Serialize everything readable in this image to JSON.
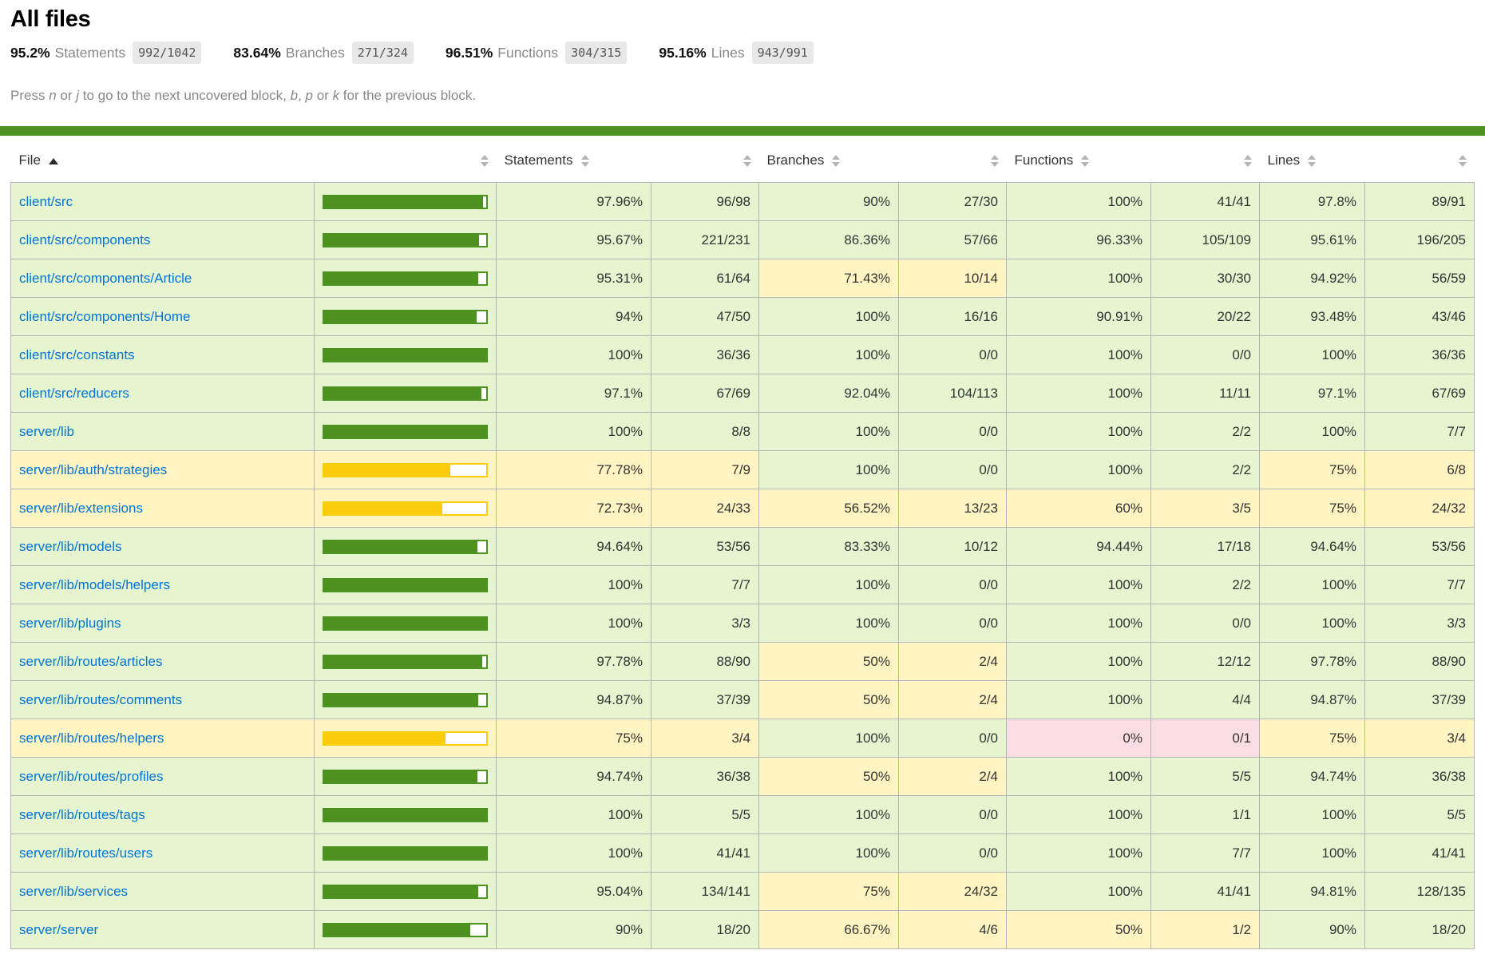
{
  "page": {
    "title": "All files"
  },
  "summary": [
    {
      "pct": "95.2%",
      "label": "Statements",
      "fraction": "992/1042"
    },
    {
      "pct": "83.64%",
      "label": "Branches",
      "fraction": "271/324"
    },
    {
      "pct": "96.51%",
      "label": "Functions",
      "fraction": "304/315"
    },
    {
      "pct": "95.16%",
      "label": "Lines",
      "fraction": "943/991"
    }
  ],
  "hint": {
    "segments": [
      {
        "text": "Press ",
        "em": false
      },
      {
        "text": "n",
        "em": true
      },
      {
        "text": " or ",
        "em": false
      },
      {
        "text": "j",
        "em": true
      },
      {
        "text": " to go to the next uncovered block, ",
        "em": false
      },
      {
        "text": "b",
        "em": true
      },
      {
        "text": ", ",
        "em": false
      },
      {
        "text": "p",
        "em": true
      },
      {
        "text": " or ",
        "em": false
      },
      {
        "text": "k",
        "em": true
      },
      {
        "text": " for the previous block.",
        "em": false
      }
    ]
  },
  "colors": {
    "high-bg": "#e6f5d0",
    "medium-bg": "#fff4c2",
    "low-bg": "#fadde4",
    "bar-high": "#4d9221",
    "bar-medium": "#f9cd0b",
    "status": "#4d9221",
    "link": "#0074d9",
    "border": "#b6b6b6",
    "quiet": "#888888"
  },
  "table": {
    "columns": [
      "File",
      "Statements",
      "Branches",
      "Functions",
      "Lines"
    ],
    "rows": [
      {
        "file": "client/src",
        "level": "high",
        "bar_pct": 97.96,
        "statements": {
          "pct": "97.96%",
          "abs": "96/98",
          "level": "high"
        },
        "branches": {
          "pct": "90%",
          "abs": "27/30",
          "level": "high"
        },
        "functions": {
          "pct": "100%",
          "abs": "41/41",
          "level": "high"
        },
        "lines": {
          "pct": "97.8%",
          "abs": "89/91",
          "level": "high"
        }
      },
      {
        "file": "client/src/components",
        "level": "high",
        "bar_pct": 95.67,
        "statements": {
          "pct": "95.67%",
          "abs": "221/231",
          "level": "high"
        },
        "branches": {
          "pct": "86.36%",
          "abs": "57/66",
          "level": "high"
        },
        "functions": {
          "pct": "96.33%",
          "abs": "105/109",
          "level": "high"
        },
        "lines": {
          "pct": "95.61%",
          "abs": "196/205",
          "level": "high"
        }
      },
      {
        "file": "client/src/components/Article",
        "level": "high",
        "bar_pct": 95.31,
        "statements": {
          "pct": "95.31%",
          "abs": "61/64",
          "level": "high"
        },
        "branches": {
          "pct": "71.43%",
          "abs": "10/14",
          "level": "medium"
        },
        "functions": {
          "pct": "100%",
          "abs": "30/30",
          "level": "high"
        },
        "lines": {
          "pct": "94.92%",
          "abs": "56/59",
          "level": "high"
        }
      },
      {
        "file": "client/src/components/Home",
        "level": "high",
        "bar_pct": 94,
        "statements": {
          "pct": "94%",
          "abs": "47/50",
          "level": "high"
        },
        "branches": {
          "pct": "100%",
          "abs": "16/16",
          "level": "high"
        },
        "functions": {
          "pct": "90.91%",
          "abs": "20/22",
          "level": "high"
        },
        "lines": {
          "pct": "93.48%",
          "abs": "43/46",
          "level": "high"
        }
      },
      {
        "file": "client/src/constants",
        "level": "high",
        "bar_pct": 100,
        "statements": {
          "pct": "100%",
          "abs": "36/36",
          "level": "high"
        },
        "branches": {
          "pct": "100%",
          "abs": "0/0",
          "level": "high"
        },
        "functions": {
          "pct": "100%",
          "abs": "0/0",
          "level": "high"
        },
        "lines": {
          "pct": "100%",
          "abs": "36/36",
          "level": "high"
        }
      },
      {
        "file": "client/src/reducers",
        "level": "high",
        "bar_pct": 97.1,
        "statements": {
          "pct": "97.1%",
          "abs": "67/69",
          "level": "high"
        },
        "branches": {
          "pct": "92.04%",
          "abs": "104/113",
          "level": "high"
        },
        "functions": {
          "pct": "100%",
          "abs": "11/11",
          "level": "high"
        },
        "lines": {
          "pct": "97.1%",
          "abs": "67/69",
          "level": "high"
        }
      },
      {
        "file": "server/lib",
        "level": "high",
        "bar_pct": 100,
        "statements": {
          "pct": "100%",
          "abs": "8/8",
          "level": "high"
        },
        "branches": {
          "pct": "100%",
          "abs": "0/0",
          "level": "high"
        },
        "functions": {
          "pct": "100%",
          "abs": "2/2",
          "level": "high"
        },
        "lines": {
          "pct": "100%",
          "abs": "7/7",
          "level": "high"
        }
      },
      {
        "file": "server/lib/auth/strategies",
        "level": "medium",
        "bar_pct": 77.78,
        "statements": {
          "pct": "77.78%",
          "abs": "7/9",
          "level": "medium"
        },
        "branches": {
          "pct": "100%",
          "abs": "0/0",
          "level": "high"
        },
        "functions": {
          "pct": "100%",
          "abs": "2/2",
          "level": "high"
        },
        "lines": {
          "pct": "75%",
          "abs": "6/8",
          "level": "medium"
        }
      },
      {
        "file": "server/lib/extensions",
        "level": "medium",
        "bar_pct": 72.73,
        "statements": {
          "pct": "72.73%",
          "abs": "24/33",
          "level": "medium"
        },
        "branches": {
          "pct": "56.52%",
          "abs": "13/23",
          "level": "medium"
        },
        "functions": {
          "pct": "60%",
          "abs": "3/5",
          "level": "medium"
        },
        "lines": {
          "pct": "75%",
          "abs": "24/32",
          "level": "medium"
        }
      },
      {
        "file": "server/lib/models",
        "level": "high",
        "bar_pct": 94.64,
        "statements": {
          "pct": "94.64%",
          "abs": "53/56",
          "level": "high"
        },
        "branches": {
          "pct": "83.33%",
          "abs": "10/12",
          "level": "high"
        },
        "functions": {
          "pct": "94.44%",
          "abs": "17/18",
          "level": "high"
        },
        "lines": {
          "pct": "94.64%",
          "abs": "53/56",
          "level": "high"
        }
      },
      {
        "file": "server/lib/models/helpers",
        "level": "high",
        "bar_pct": 100,
        "statements": {
          "pct": "100%",
          "abs": "7/7",
          "level": "high"
        },
        "branches": {
          "pct": "100%",
          "abs": "0/0",
          "level": "high"
        },
        "functions": {
          "pct": "100%",
          "abs": "2/2",
          "level": "high"
        },
        "lines": {
          "pct": "100%",
          "abs": "7/7",
          "level": "high"
        }
      },
      {
        "file": "server/lib/plugins",
        "level": "high",
        "bar_pct": 100,
        "statements": {
          "pct": "100%",
          "abs": "3/3",
          "level": "high"
        },
        "branches": {
          "pct": "100%",
          "abs": "0/0",
          "level": "high"
        },
        "functions": {
          "pct": "100%",
          "abs": "0/0",
          "level": "high"
        },
        "lines": {
          "pct": "100%",
          "abs": "3/3",
          "level": "high"
        }
      },
      {
        "file": "server/lib/routes/articles",
        "level": "high",
        "bar_pct": 97.78,
        "statements": {
          "pct": "97.78%",
          "abs": "88/90",
          "level": "high"
        },
        "branches": {
          "pct": "50%",
          "abs": "2/4",
          "level": "medium"
        },
        "functions": {
          "pct": "100%",
          "abs": "12/12",
          "level": "high"
        },
        "lines": {
          "pct": "97.78%",
          "abs": "88/90",
          "level": "high"
        }
      },
      {
        "file": "server/lib/routes/comments",
        "level": "high",
        "bar_pct": 94.87,
        "statements": {
          "pct": "94.87%",
          "abs": "37/39",
          "level": "high"
        },
        "branches": {
          "pct": "50%",
          "abs": "2/4",
          "level": "medium"
        },
        "functions": {
          "pct": "100%",
          "abs": "4/4",
          "level": "high"
        },
        "lines": {
          "pct": "94.87%",
          "abs": "37/39",
          "level": "high"
        }
      },
      {
        "file": "server/lib/routes/helpers",
        "level": "medium",
        "bar_pct": 75,
        "statements": {
          "pct": "75%",
          "abs": "3/4",
          "level": "medium"
        },
        "branches": {
          "pct": "100%",
          "abs": "0/0",
          "level": "high"
        },
        "functions": {
          "pct": "0%",
          "abs": "0/1",
          "level": "low"
        },
        "lines": {
          "pct": "75%",
          "abs": "3/4",
          "level": "medium"
        }
      },
      {
        "file": "server/lib/routes/profiles",
        "level": "high",
        "bar_pct": 94.74,
        "statements": {
          "pct": "94.74%",
          "abs": "36/38",
          "level": "high"
        },
        "branches": {
          "pct": "50%",
          "abs": "2/4",
          "level": "medium"
        },
        "functions": {
          "pct": "100%",
          "abs": "5/5",
          "level": "high"
        },
        "lines": {
          "pct": "94.74%",
          "abs": "36/38",
          "level": "high"
        }
      },
      {
        "file": "server/lib/routes/tags",
        "level": "high",
        "bar_pct": 100,
        "statements": {
          "pct": "100%",
          "abs": "5/5",
          "level": "high"
        },
        "branches": {
          "pct": "100%",
          "abs": "0/0",
          "level": "high"
        },
        "functions": {
          "pct": "100%",
          "abs": "1/1",
          "level": "high"
        },
        "lines": {
          "pct": "100%",
          "abs": "5/5",
          "level": "high"
        }
      },
      {
        "file": "server/lib/routes/users",
        "level": "high",
        "bar_pct": 100,
        "statements": {
          "pct": "100%",
          "abs": "41/41",
          "level": "high"
        },
        "branches": {
          "pct": "100%",
          "abs": "0/0",
          "level": "high"
        },
        "functions": {
          "pct": "100%",
          "abs": "7/7",
          "level": "high"
        },
        "lines": {
          "pct": "100%",
          "abs": "41/41",
          "level": "high"
        }
      },
      {
        "file": "server/lib/services",
        "level": "high",
        "bar_pct": 95.04,
        "statements": {
          "pct": "95.04%",
          "abs": "134/141",
          "level": "high"
        },
        "branches": {
          "pct": "75%",
          "abs": "24/32",
          "level": "medium"
        },
        "functions": {
          "pct": "100%",
          "abs": "41/41",
          "level": "high"
        },
        "lines": {
          "pct": "94.81%",
          "abs": "128/135",
          "level": "high"
        }
      },
      {
        "file": "server/server",
        "level": "high",
        "bar_pct": 90,
        "statements": {
          "pct": "90%",
          "abs": "18/20",
          "level": "high"
        },
        "branches": {
          "pct": "66.67%",
          "abs": "4/6",
          "level": "medium"
        },
        "functions": {
          "pct": "50%",
          "abs": "1/2",
          "level": "medium"
        },
        "lines": {
          "pct": "90%",
          "abs": "18/20",
          "level": "high"
        }
      }
    ]
  }
}
